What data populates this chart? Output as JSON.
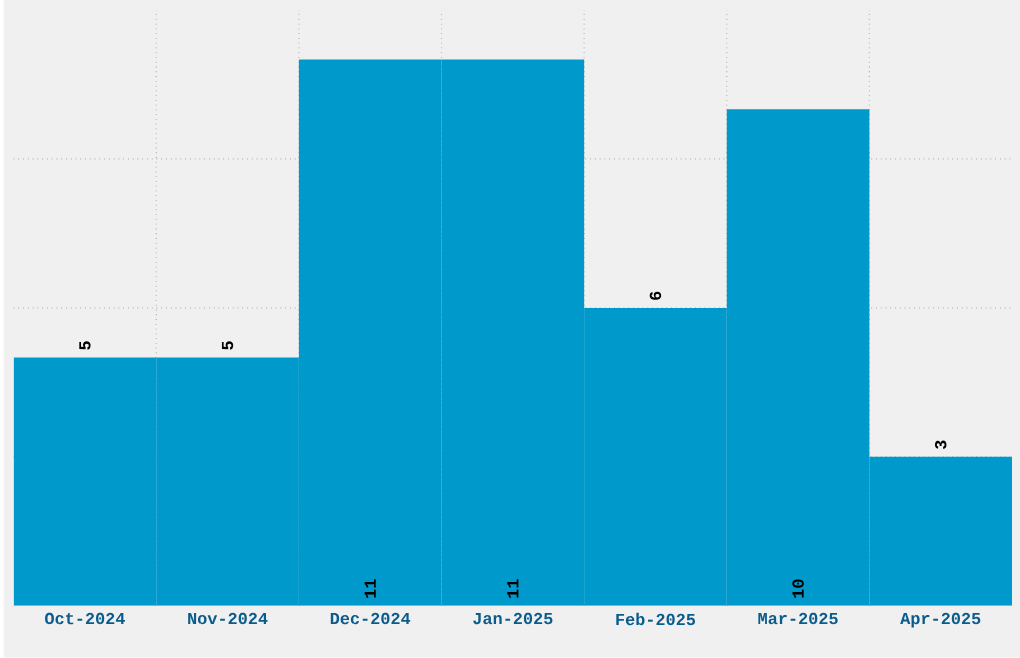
{
  "chart_data": {
    "type": "bar",
    "categories": [
      "Oct-2024",
      "Nov-2024",
      "Dec-2024",
      "Jan-2025",
      "Feb-2025",
      "Mar-2025",
      "Apr-2025"
    ],
    "values": [
      5,
      5,
      11,
      11,
      6,
      10,
      3
    ],
    "color": "#0099cc",
    "ylim": [
      0,
      12
    ],
    "yticks": [
      {
        "value": 3,
        "label": null
      },
      {
        "value": 6,
        "label": null
      },
      {
        "value": 9,
        "label": null
      }
    ],
    "tick_labels": "x",
    "grid": true,
    "data_labels": true
  }
}
